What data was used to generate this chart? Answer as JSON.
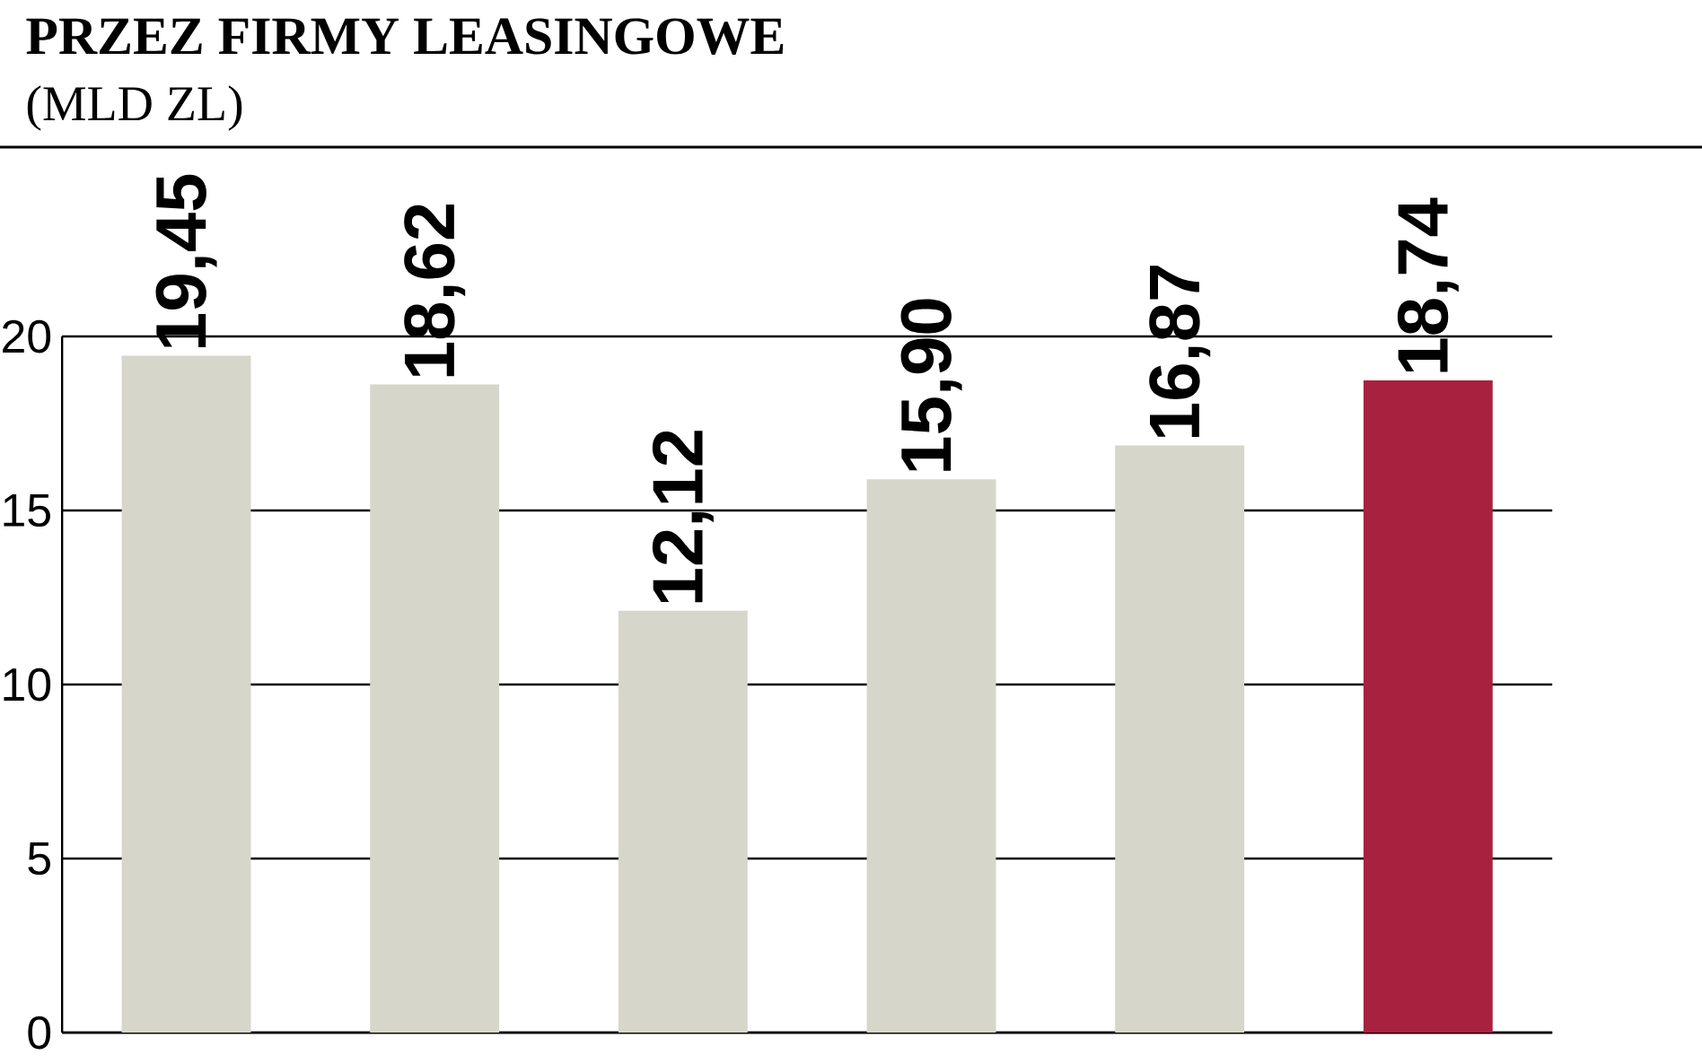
{
  "chart_data": {
    "type": "bar",
    "title": "PRZEZ FIRMY LEASINGOWE",
    "subtitle": "(MLD ZL)",
    "categories": [
      null,
      null,
      null,
      null,
      null,
      null
    ],
    "values": [
      19.45,
      18.62,
      12.12,
      15.9,
      16.87,
      18.74
    ],
    "value_labels": [
      "19,45",
      "18,62",
      "12,12",
      "15,90",
      "16,87",
      "18,74"
    ],
    "colors": [
      "#d6d6ca",
      "#d6d6ca",
      "#d6d6ca",
      "#d6d6ca",
      "#d6d6ca",
      "#a8223f"
    ],
    "ylim": [
      0,
      20
    ],
    "yticks": [
      0,
      5,
      10,
      15,
      20
    ],
    "grid": "y"
  }
}
